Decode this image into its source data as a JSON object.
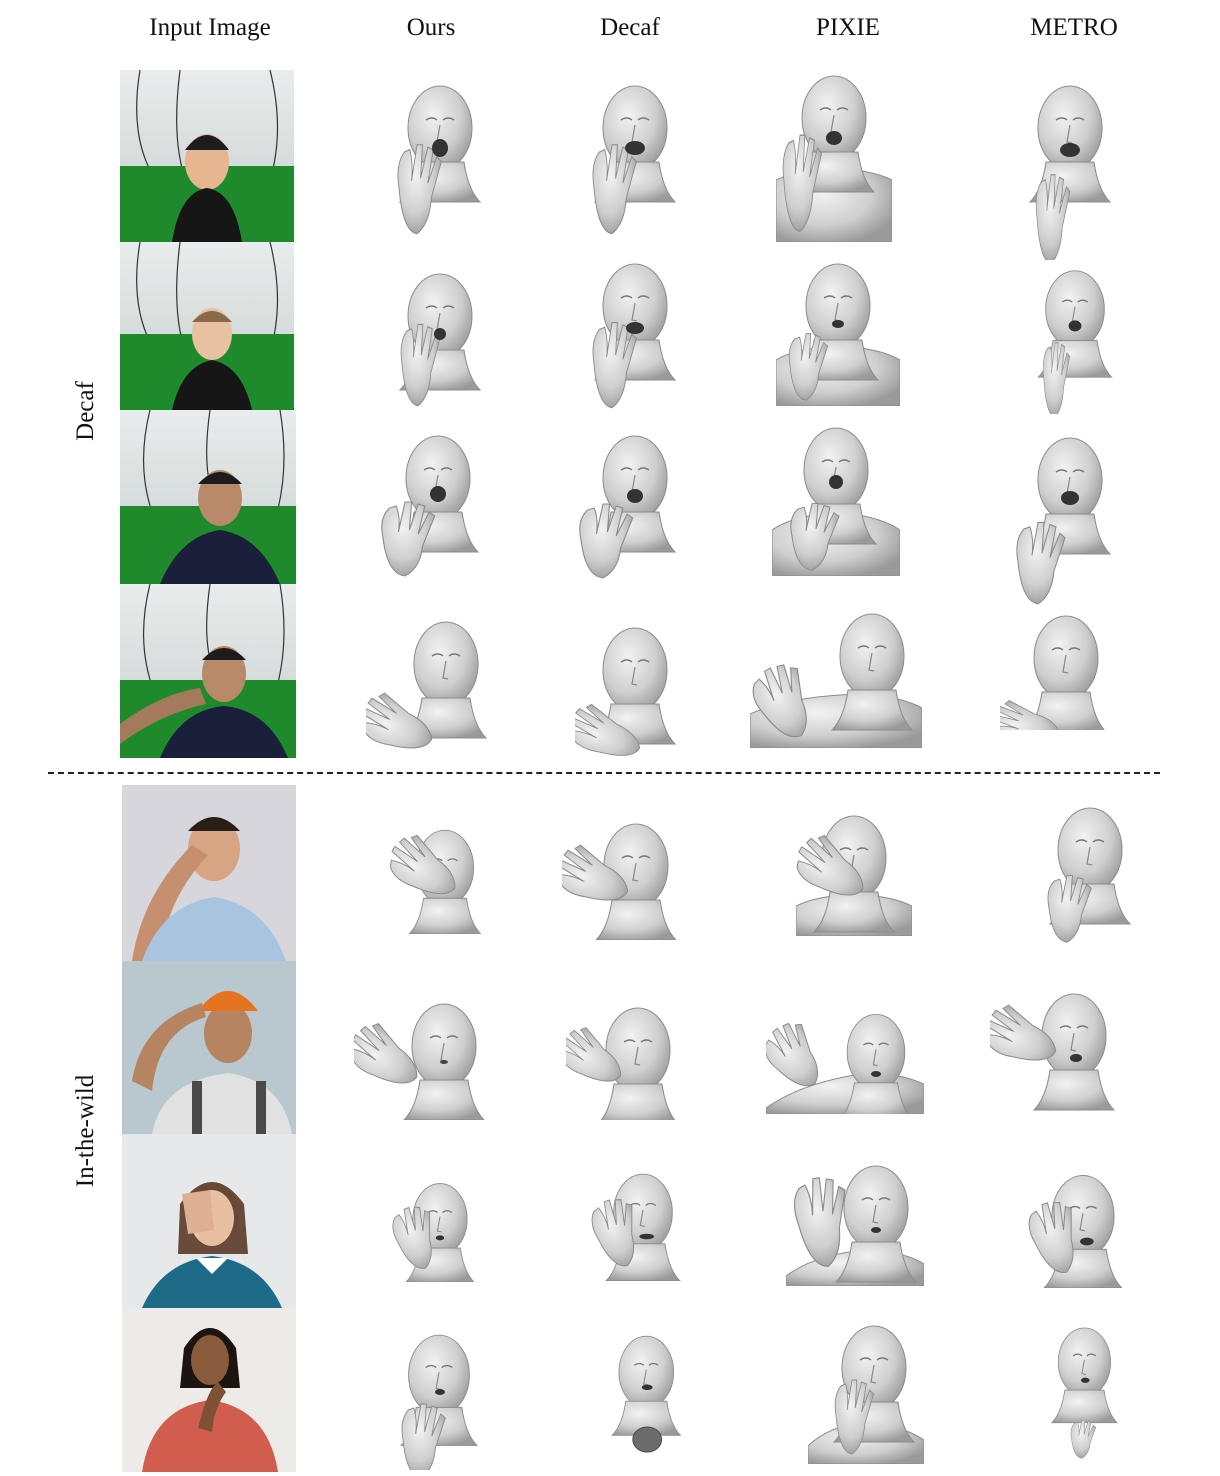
{
  "columns": {
    "input": "Input Image",
    "ours": "Ours",
    "decaf": "Decaf",
    "pixie": "PIXIE",
    "metro": "METRO"
  },
  "groups": {
    "decaf": "Decaf",
    "wild": "In-the-wild"
  },
  "colors": {
    "green_screen": "#1f8a2c",
    "mesh": "#d8d8d8",
    "divider": "#222222"
  }
}
